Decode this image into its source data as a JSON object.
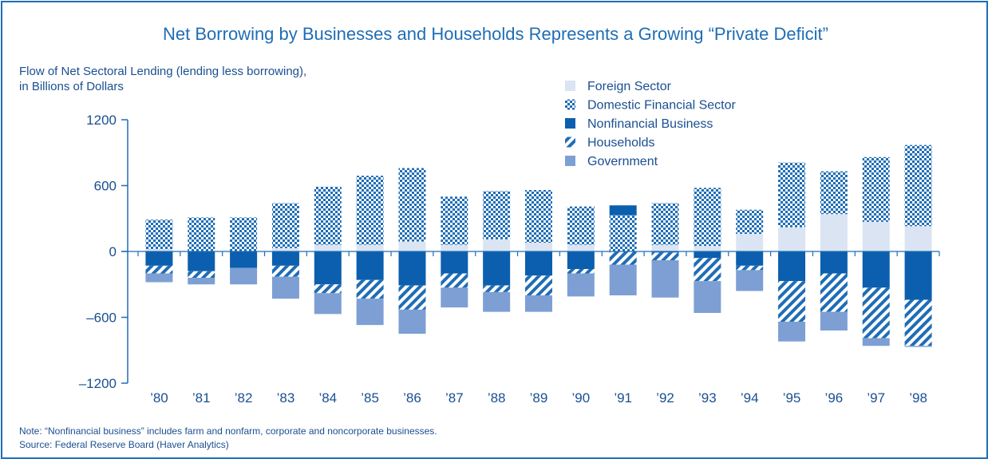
{
  "chart_data": {
    "type": "bar",
    "stacked": true,
    "title": "Net Borrowing by Businesses and Households Represents a Growing “Private Deficit”",
    "ylabel_line1": "Flow of Net Sectoral Lending (lending less borrowing),",
    "ylabel_line2": "in Billions of Dollars",
    "ylim": [
      -1200,
      1200
    ],
    "yticks": [
      1200,
      600,
      0,
      -600,
      -1200
    ],
    "ytick_labels": [
      "1200",
      "600",
      "0",
      "–600",
      "–1200"
    ],
    "categories": [
      "’80",
      "’81",
      "’82",
      "’83",
      "’84",
      "’85",
      "’86",
      "’87",
      "’88",
      "’89",
      "’90",
      "’91",
      "’92",
      "’93",
      "’94",
      "’95",
      "’96",
      "’97",
      "’98"
    ],
    "legend_position": "top-right",
    "series": [
      {
        "name": "Foreign Sector",
        "color": "#dbe4f3",
        "pattern": "solid",
        "values": [
          20,
          0,
          0,
          30,
          60,
          60,
          90,
          60,
          110,
          80,
          60,
          0,
          60,
          50,
          160,
          220,
          340,
          270,
          230
        ]
      },
      {
        "name": "Domestic Financial Sector",
        "color": "#1f6db5",
        "pattern": "checker",
        "values": [
          270,
          310,
          310,
          410,
          530,
          630,
          670,
          440,
          440,
          480,
          350,
          330,
          380,
          530,
          220,
          590,
          390,
          590,
          740
        ]
      },
      {
        "name": "Nonfinancial Business",
        "color": "#0b5fae",
        "pattern": "solid",
        "values": [
          -130,
          -180,
          -150,
          -130,
          -300,
          -260,
          -310,
          -200,
          -310,
          -220,
          -160,
          90,
          -10,
          -60,
          -130,
          -270,
          -200,
          -330,
          -440
        ]
      },
      {
        "name": "Households",
        "color": "#1f6db5",
        "pattern": "diagonal",
        "values": [
          -70,
          -60,
          0,
          -100,
          -80,
          -170,
          -220,
          -130,
          -60,
          -180,
          -40,
          -120,
          -70,
          -210,
          -40,
          -370,
          -350,
          -460,
          -420
        ]
      },
      {
        "name": "Government",
        "color": "#7d9fd4",
        "pattern": "solid",
        "values": [
          -80,
          -60,
          -150,
          -200,
          -190,
          -240,
          -220,
          -180,
          -180,
          -150,
          -210,
          -280,
          -340,
          -290,
          -190,
          -180,
          -170,
          -70,
          -10
        ]
      }
    ],
    "note": "Note: “Nonfinancial business” includes farm and nonfarm, corporate and noncorporate businesses.",
    "source": "Source: Federal Reserve Board (Haver Analytics)"
  }
}
